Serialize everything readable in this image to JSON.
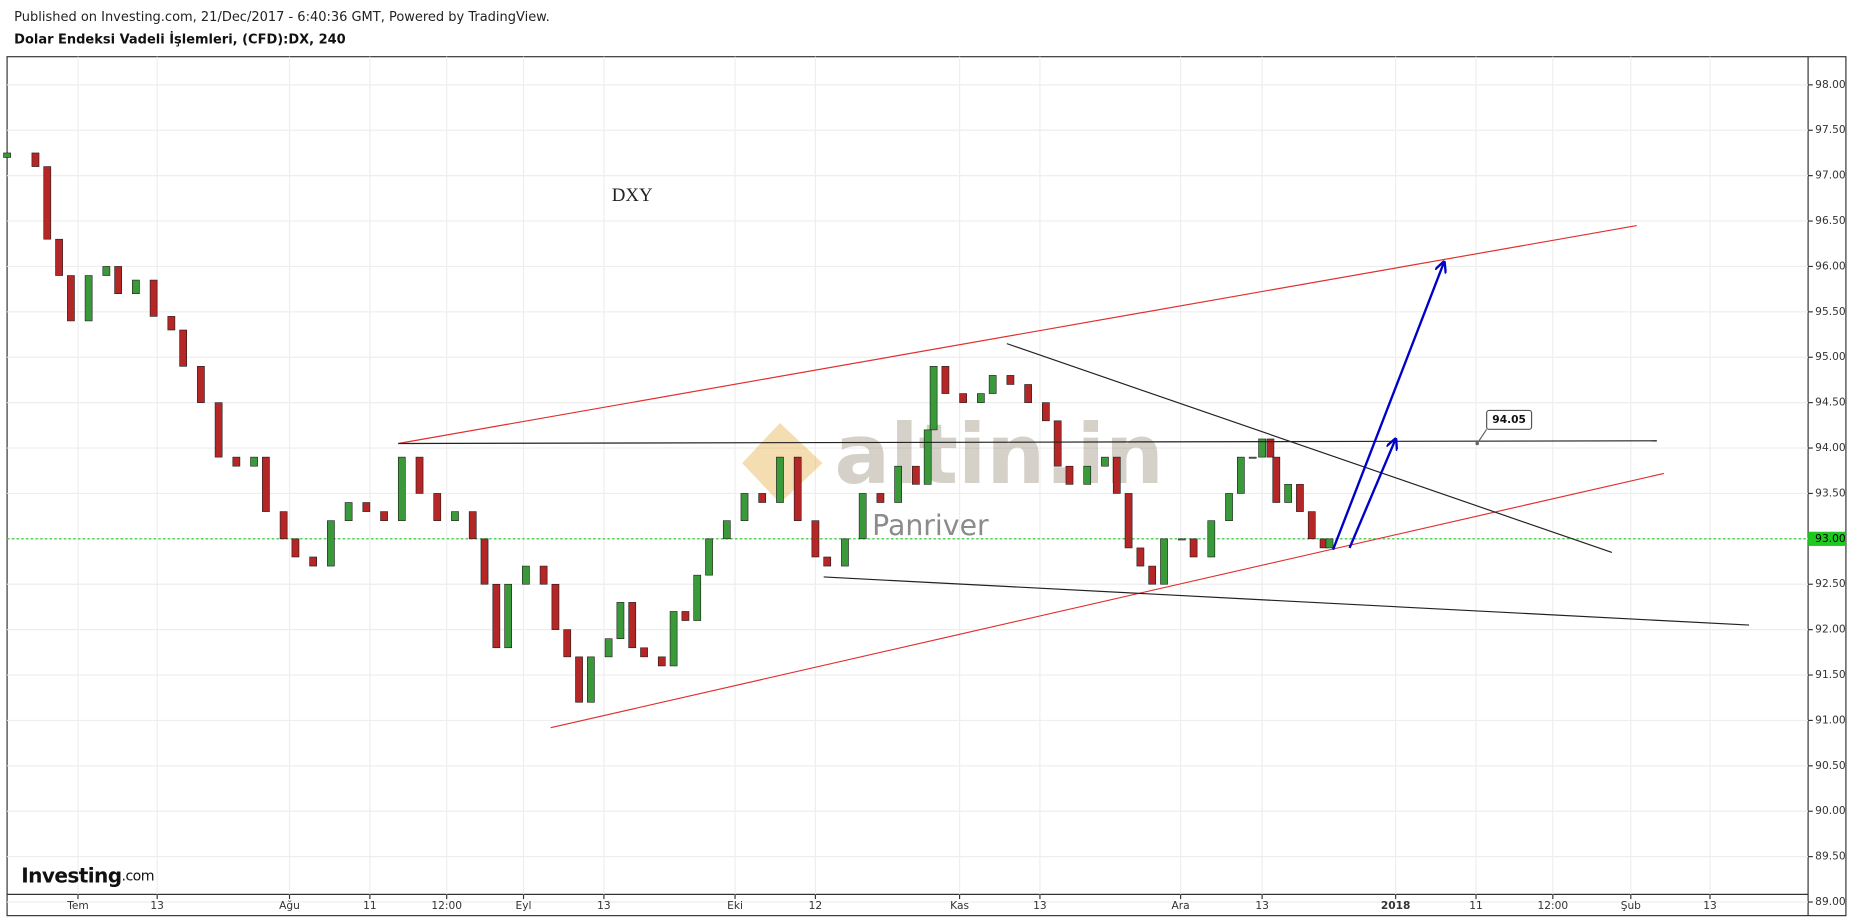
{
  "chart_data": {
    "type": "candlestick",
    "header": "Published on Investing.com, 21/Dec/2017 - 6:40:36 GMT, Powered by TradingView.",
    "title": "Dolar Endeksi Vadeli İşlemleri, (CFD):DX, 240",
    "up_color": "#3a9a3a",
    "down_color": "#b52626",
    "x": [
      0,
      2.4,
      3.4,
      4.4,
      5.4,
      6.9,
      8.4,
      9.4,
      10.9,
      12.4,
      13.9,
      14.9,
      16.4,
      17.9,
      19.4,
      20.9,
      21.9,
      23.4,
      24.4,
      25.9,
      27.4,
      28.9,
      30.4,
      31.9,
      33.4,
      34.9,
      36.4,
      37.9,
      39.4,
      40.4,
      41.4,
      42.4,
      43.9,
      45.4,
      46.4,
      47.4,
      48.4,
      49.4,
      50.9,
      51.9,
      52.9,
      53.9,
      55.4,
      56.4,
      57.4,
      58.4,
      59.4,
      60.9,
      62.4,
      63.9,
      65.4,
      66.9,
      68.4,
      69.4,
      70.9,
      72.4,
      73.9,
      75.4,
      76.9,
      77.9,
      78.4,
      79.4,
      80.9,
      82.4,
      83.4,
      84.9,
      86.4,
      87.9,
      88.9,
      89.9,
      91.4,
      92.9,
      93.9,
      94.9,
      95.9,
      96.9,
      97.9,
      99.4,
      100.4,
      101.9,
      103.4,
      104.4,
      105.4,
      106.2,
      106.9,
      107.4,
      108.4,
      109.4,
      110.4,
      111.4,
      111.9
    ],
    "open": [
      97.2,
      97.25,
      97.1,
      96.3,
      95.9,
      95.4,
      95.9,
      96.0,
      95.7,
      95.85,
      95.45,
      95.3,
      94.9,
      94.5,
      93.9,
      93.8,
      93.9,
      93.3,
      93.0,
      92.8,
      92.7,
      93.2,
      93.4,
      93.3,
      93.2,
      93.9,
      93.5,
      93.2,
      93.3,
      93.0,
      92.5,
      91.8,
      92.5,
      92.7,
      92.5,
      92.0,
      91.7,
      91.2,
      91.7,
      91.9,
      92.3,
      91.8,
      91.7,
      91.6,
      92.2,
      92.1,
      92.6,
      93.0,
      93.2,
      93.5,
      93.4,
      93.9,
      93.2,
      92.8,
      92.7,
      93.0,
      93.5,
      93.4,
      93.8,
      93.6,
      94.2,
      94.9,
      94.6,
      94.5,
      94.6,
      94.8,
      94.7,
      94.5,
      94.3,
      93.8,
      93.6,
      93.8,
      93.9,
      93.5,
      92.9,
      92.7,
      92.5,
      93.0,
      93.0,
      92.8,
      93.2,
      93.5,
      93.9,
      93.9,
      94.1,
      93.9,
      93.4,
      93.6,
      93.3,
      93.0,
      92.9
    ],
    "close": [
      97.25,
      97.1,
      96.3,
      95.9,
      95.4,
      95.9,
      96.0,
      95.7,
      95.85,
      95.45,
      95.3,
      94.9,
      94.5,
      93.9,
      93.8,
      93.9,
      93.3,
      93.0,
      92.8,
      92.7,
      93.2,
      93.4,
      93.3,
      93.2,
      93.9,
      93.5,
      93.2,
      93.3,
      93.0,
      92.5,
      91.8,
      92.5,
      92.7,
      92.5,
      92.0,
      91.7,
      91.2,
      91.7,
      91.9,
      92.3,
      91.8,
      91.7,
      91.6,
      92.2,
      92.1,
      92.6,
      93.0,
      93.2,
      93.5,
      93.4,
      93.9,
      93.2,
      92.8,
      92.7,
      93.0,
      93.5,
      93.4,
      93.8,
      93.6,
      94.2,
      94.9,
      94.6,
      94.5,
      94.6,
      94.8,
      94.7,
      94.5,
      94.3,
      93.8,
      93.6,
      93.8,
      93.9,
      93.5,
      92.9,
      92.7,
      92.5,
      93.0,
      93.0,
      92.8,
      93.2,
      93.5,
      93.9,
      93.9,
      94.1,
      93.9,
      93.4,
      93.6,
      93.3,
      93.0,
      92.9,
      93.0
    ],
    "xlim": [
      0,
      152.4
    ],
    "ylim": [
      88.85,
      98.31
    ],
    "xticks": [
      {
        "value": 6.0,
        "label": "Tem"
      },
      {
        "value": 12.7,
        "label": "13"
      },
      {
        "value": 23.9,
        "label": "Ağu"
      },
      {
        "value": 30.7,
        "label": "11"
      },
      {
        "value": 37.2,
        "label": "12:00"
      },
      {
        "value": 43.7,
        "label": "Eyl"
      },
      {
        "value": 50.5,
        "label": "13"
      },
      {
        "value": 61.6,
        "label": "Eki"
      },
      {
        "value": 68.4,
        "label": "12"
      },
      {
        "value": 80.6,
        "label": "Kas"
      },
      {
        "value": 87.4,
        "label": "13"
      },
      {
        "value": 99.3,
        "label": "Ara"
      },
      {
        "value": 106.2,
        "label": "13"
      },
      {
        "value": 117.5,
        "label": "2018"
      },
      {
        "value": 124.3,
        "label": "11"
      },
      {
        "value": 130.8,
        "label": "12:00"
      },
      {
        "value": 137.4,
        "label": "Şub"
      },
      {
        "value": 144.1,
        "label": "13"
      }
    ],
    "yticks": [
      {
        "value": 98,
        "label": "98.00"
      },
      {
        "value": 97.5,
        "label": "97.50"
      },
      {
        "value": 97,
        "label": "97.00"
      },
      {
        "value": 96.5,
        "label": "96.50"
      },
      {
        "value": 96,
        "label": "96.00"
      },
      {
        "value": 95.5,
        "label": "95.50"
      },
      {
        "value": 95,
        "label": "95.00"
      },
      {
        "value": 94.5,
        "label": "94.50"
      },
      {
        "value": 94,
        "label": "94.00"
      },
      {
        "value": 93.5,
        "label": "93.50"
      },
      {
        "value": 93,
        "label": "93.00"
      },
      {
        "value": 92.5,
        "label": "92.50"
      },
      {
        "value": 92,
        "label": "92.00"
      },
      {
        "value": 91.5,
        "label": "91.50"
      },
      {
        "value": 91,
        "label": "91.00"
      },
      {
        "value": 90.5,
        "label": "90.50"
      },
      {
        "value": 90,
        "label": "90.00"
      },
      {
        "value": 89.5,
        "label": "89.50"
      },
      {
        "value": 89,
        "label": "89.00"
      }
    ],
    "grid": true,
    "price_line": {
      "value": 93.0,
      "label": "93.00",
      "color": "#1ec81e"
    },
    "trendlines": [
      {
        "x": [
          33.1,
          137.9
        ],
        "y": [
          94.05,
          96.45
        ],
        "color": "#e03030"
      },
      {
        "x": [
          46.0,
          140.2
        ],
        "y": [
          90.92,
          93.72
        ],
        "color": "#e03030"
      },
      {
        "x": [
          33.1,
          139.6
        ],
        "y": [
          94.05,
          94.08
        ],
        "color": "#222222"
      },
      {
        "x": [
          84.6,
          135.8
        ],
        "y": [
          95.15,
          92.85
        ],
        "color": "#222222"
      },
      {
        "x": [
          69.1,
          147.4
        ],
        "y": [
          92.58,
          92.05
        ],
        "color": "#222222"
      },
      {
        "x": [
          112.2,
          121.6
        ],
        "y": [
          92.88,
          96.05
        ],
        "color": "#0000c8",
        "arrow": true
      },
      {
        "x": [
          113.6,
          117.5
        ],
        "y": [
          92.9,
          94.1
        ],
        "color": "#0000c8",
        "arrow": true
      }
    ],
    "callout": {
      "value": 94.05,
      "label": "94.05",
      "x": 124.4
    },
    "annotation": {
      "text": "DXY",
      "x": 52.9,
      "y": 96.77
    },
    "watermark": {
      "text": "altin.in",
      "subtext": "Panriver"
    },
    "logo": "Investing",
    "logo_suffix": ".com"
  }
}
